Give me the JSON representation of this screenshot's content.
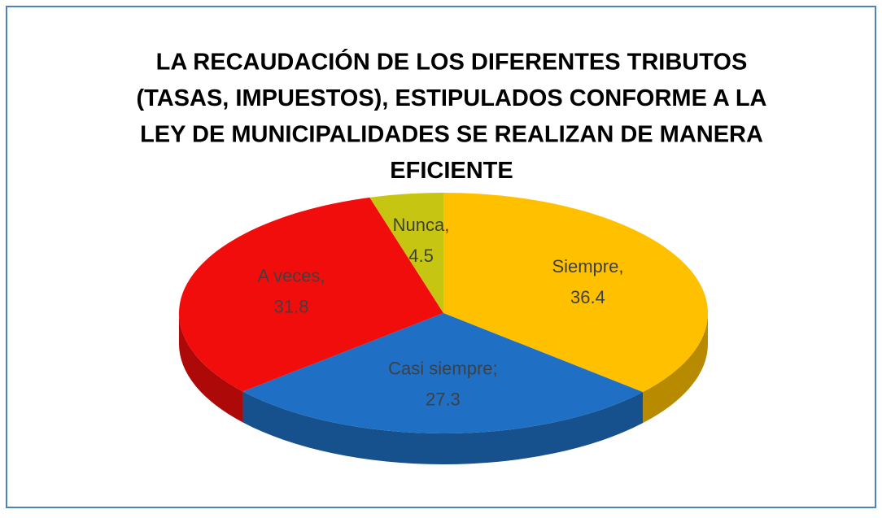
{
  "chart_data": {
    "type": "pie3d",
    "title": [
      "LA RECAUDACIÓN DE LOS DIFERENTES TRIBUTOS",
      "(TASAS, IMPUESTOS), ESTIPULADOS CONFORME A LA",
      "LEY DE MUNICIPALIDADES SE REALIZAN DE MANERA",
      "EFICIENTE"
    ],
    "categories": [
      "Siempre,",
      "Casi siempre;",
      "A veces,",
      "Nunca,"
    ],
    "values": [
      36.4,
      27.3,
      31.8,
      4.5
    ],
    "colors": [
      "#ffc000",
      "#1f6fc4",
      "#f20d0d",
      "#c6c612"
    ]
  }
}
